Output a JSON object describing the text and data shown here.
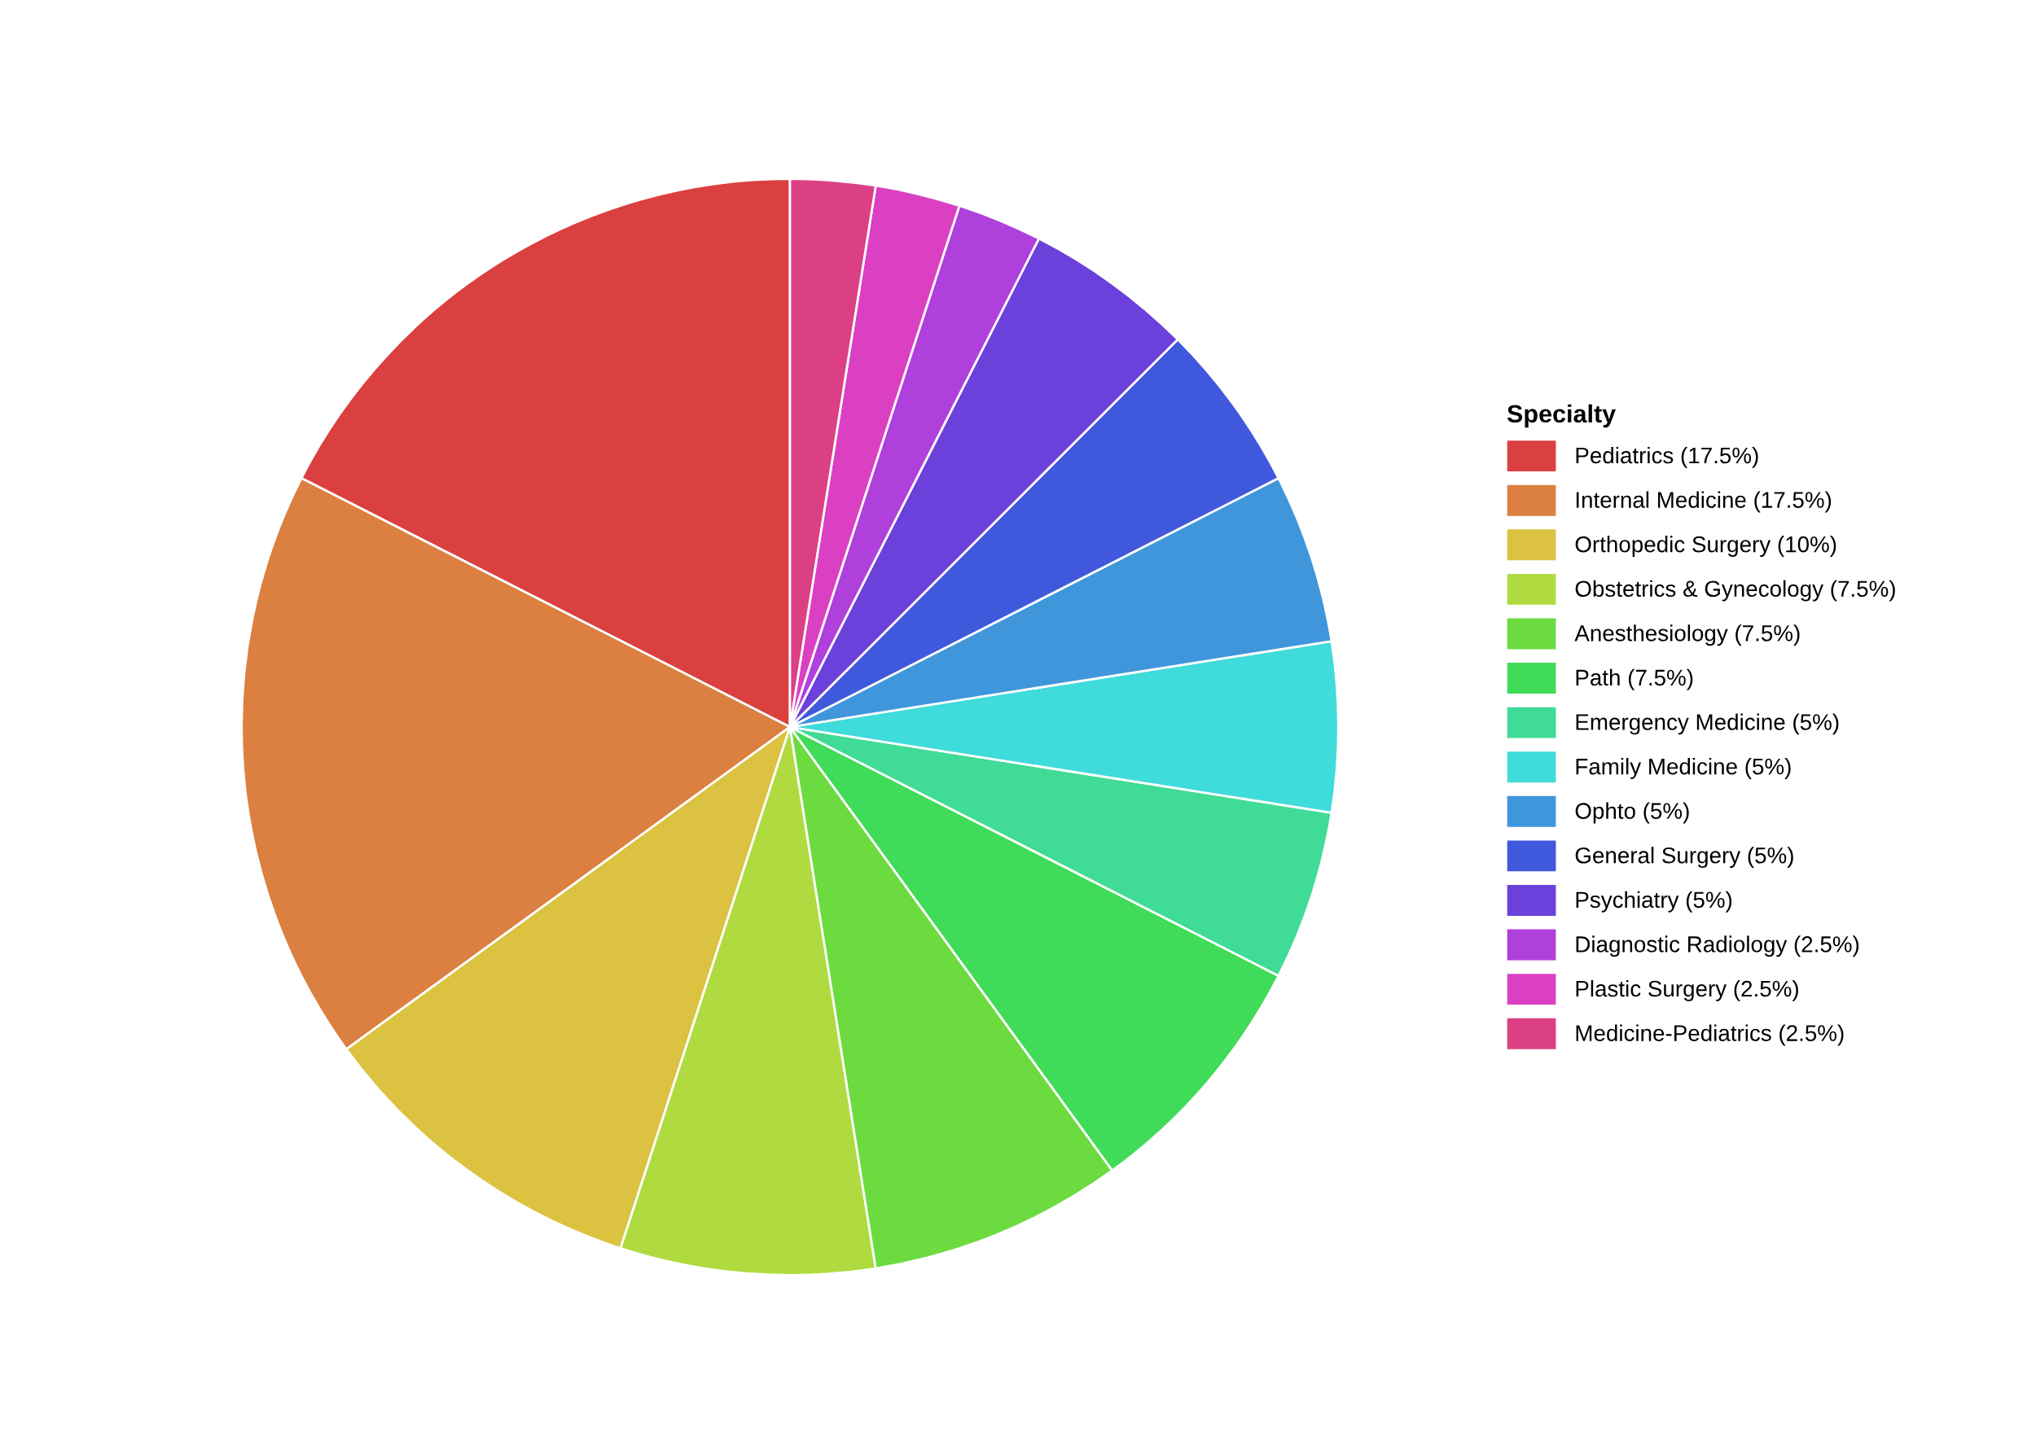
{
  "chart_data": {
    "type": "pie",
    "legend_title": "Specialty",
    "legend": "right",
    "categories": [
      "Pediatrics (17.5%)",
      "Internal Medicine (17.5%)",
      "Orthopedic Surgery (10%)",
      "Obstetrics & Gynecology (7.5%)",
      "Anesthesiology (7.5%)",
      "Path (7.5%)",
      "Emergency Medicine (5%)",
      "Family Medicine (5%)",
      "Ophto (5%)",
      "General Surgery (5%)",
      "Psychiatry (5%)",
      "Diagnostic Radiology (2.5%)",
      "Plastic Surgery (2.5%)",
      "Medicine-Pediatrics (2.5%)"
    ],
    "values": [
      17.5,
      17.5,
      10,
      7.5,
      7.5,
      7.5,
      5,
      5,
      5,
      5,
      5,
      2.5,
      2.5,
      2.5
    ],
    "colors": [
      "#db4040",
      "#db8040",
      "#dbc240",
      "#afdb40",
      "#6cdb40",
      "#40db58",
      "#40db96",
      "#40dbdb",
      "#4096db",
      "#4058db",
      "#6c40db",
      "#af40db",
      "#db40c2",
      "#db4084"
    ]
  }
}
